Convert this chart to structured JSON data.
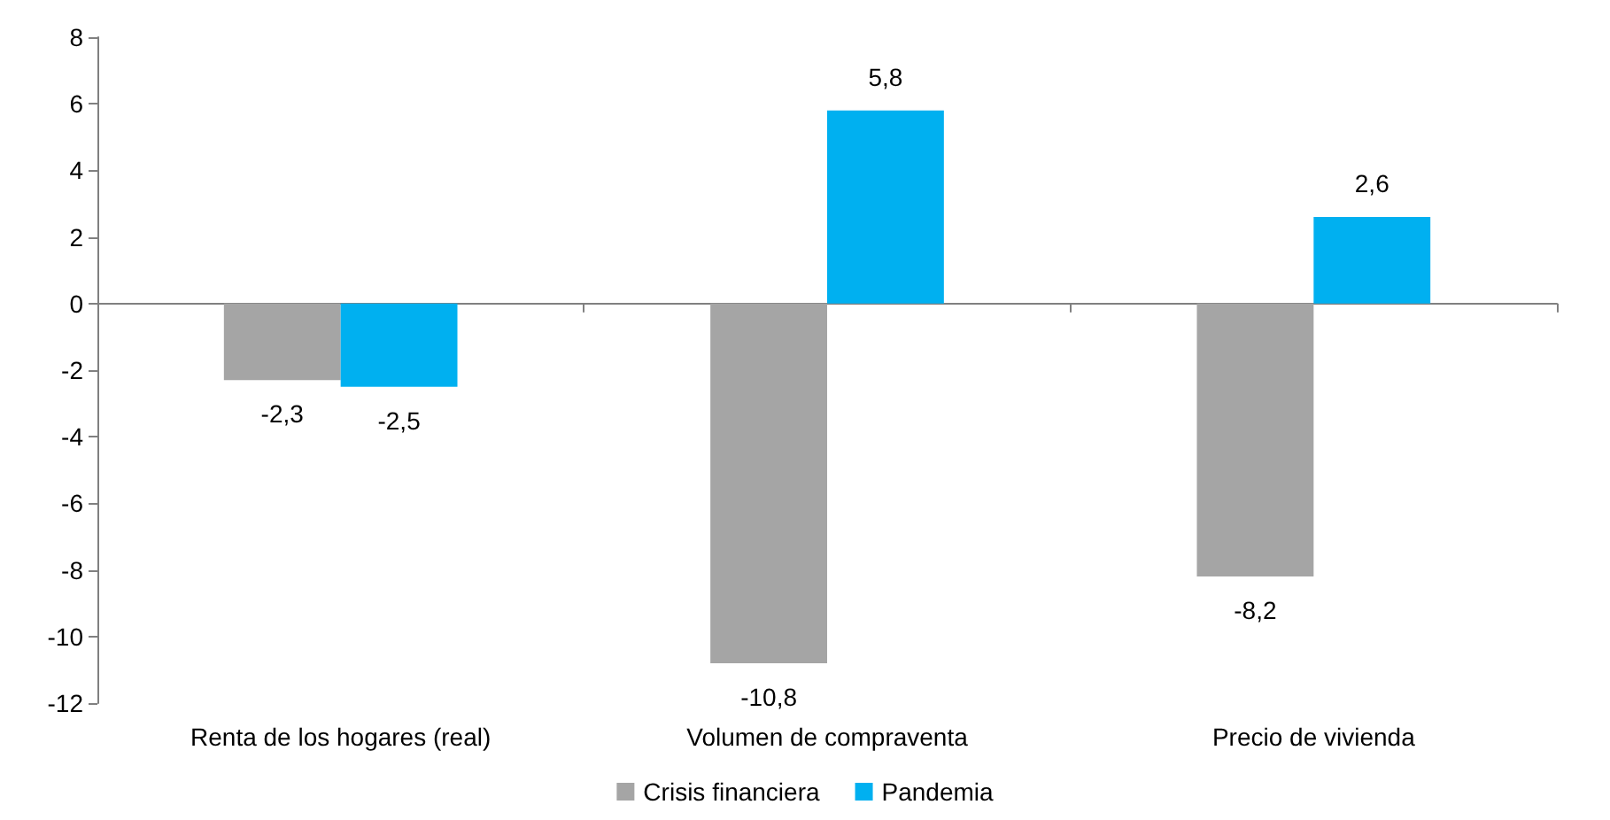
{
  "chart_data": {
    "type": "bar",
    "categories": [
      "Renta de los hogares (real)",
      "Volumen de compraventa",
      "Precio de vivienda"
    ],
    "series": [
      {
        "name": "Crisis financiera",
        "color": "#a5a5a5",
        "values": [
          -2.3,
          -10.8,
          -8.2
        ],
        "value_labels": [
          "-2,3",
          "-10,8",
          "-8,2"
        ]
      },
      {
        "name": "Pandemia",
        "color": "#00b0f0",
        "values": [
          -2.5,
          5.8,
          2.6
        ],
        "value_labels": [
          "-2,5",
          "5,8",
          "2,6"
        ]
      }
    ],
    "ylim": [
      -12,
      8
    ],
    "yticks": [
      -12,
      -10,
      -8,
      -6,
      -4,
      -2,
      0,
      2,
      4,
      6,
      8
    ],
    "legend": "bottom"
  }
}
